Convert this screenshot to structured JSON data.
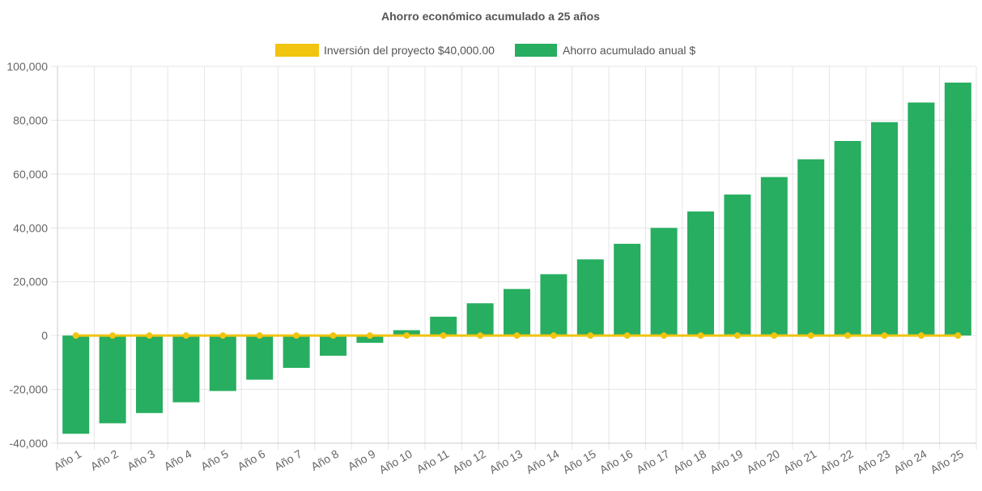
{
  "chart_data": {
    "type": "bar",
    "title": "Ahorro económico acumulado a 25 años",
    "categories": [
      "Año 1",
      "Año 2",
      "Año 3",
      "Año 4",
      "Año 5",
      "Año 6",
      "Año 7",
      "Año 8",
      "Año 9",
      "Año 10",
      "Año 11",
      "Año 12",
      "Año 13",
      "Año 14",
      "Año 15",
      "Año 16",
      "Año 17",
      "Año 18",
      "Año 19",
      "Año 20",
      "Año 21",
      "Año 22",
      "Año 23",
      "Año 24",
      "Año 25"
    ],
    "series": [
      {
        "name": "Inversión del proyecto $40,000.00",
        "type": "line",
        "color": "#f1c40f",
        "values": [
          0,
          0,
          0,
          0,
          0,
          0,
          0,
          0,
          0,
          0,
          0,
          0,
          0,
          0,
          0,
          0,
          0,
          0,
          0,
          0,
          0,
          0,
          0,
          0,
          0
        ]
      },
      {
        "name": "Ahorro acumulado anual $",
        "type": "bar",
        "color": "#27ae60",
        "values": [
          -36500,
          -32600,
          -28800,
          -24800,
          -20600,
          -16400,
          -12000,
          -7500,
          -2700,
          2000,
          7000,
          12000,
          17300,
          22800,
          28300,
          34100,
          40000,
          46100,
          52400,
          58900,
          65500,
          72300,
          79300,
          86600,
          94000
        ]
      }
    ],
    "xlabel": "",
    "ylabel": "",
    "ylim": [
      -40000,
      100000
    ],
    "yticks": [
      100000,
      80000,
      60000,
      40000,
      20000,
      0,
      -20000,
      -40000
    ],
    "ytick_labels": [
      "100,000",
      "80,000",
      "60,000",
      "40,000",
      "20,000",
      "0",
      "-20,000",
      "-40,000"
    ],
    "grid": true,
    "legend_position": "top-center",
    "colors": {
      "grid": "#e5e5e5",
      "axis": "#cccccc",
      "text": "#666666",
      "title": "#555555"
    }
  }
}
